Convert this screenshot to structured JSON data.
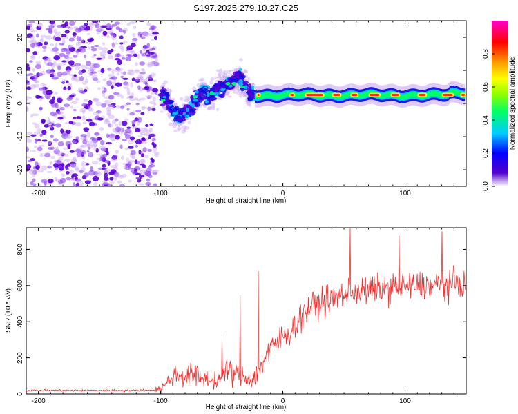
{
  "title": "S197.2025.279.10.27.C25",
  "chart_data": [
    {
      "type": "heatmap",
      "xlabel": "Height of straight line (km)",
      "ylabel": "Frequency (Hz)",
      "xlim": [
        -210,
        150
      ],
      "ylim": [
        -25,
        25
      ],
      "xticks": [
        -200,
        -100,
        0,
        100
      ],
      "yticks": [
        -20,
        -10,
        0,
        10,
        20
      ],
      "colorbar": {
        "label": "Normalized spectral amplitude",
        "ticks": [
          0.0,
          0.2,
          0.4,
          0.6,
          0.8
        ],
        "range": [
          0,
          1
        ],
        "colors": [
          "#ffffff",
          "#5500cc",
          "#0000ff",
          "#00ccff",
          "#00ff00",
          "#ffff00",
          "#ff9900",
          "#ff0000",
          "#ff00cc"
        ]
      },
      "features": {
        "noise_region_x": [
          -210,
          -103
        ],
        "noise_freq_range_hz": [
          -25,
          25
        ],
        "chirp_points": [
          [
            -100,
            3
          ],
          [
            -95,
            1
          ],
          [
            -92,
            -1
          ],
          [
            -88,
            -3
          ],
          [
            -85,
            -4
          ],
          [
            -80,
            -3
          ],
          [
            -75,
            -1
          ],
          [
            -70,
            2
          ],
          [
            -65,
            3
          ],
          [
            -60,
            2
          ],
          [
            -55,
            4
          ],
          [
            -50,
            5
          ],
          [
            -45,
            6
          ],
          [
            -40,
            7
          ],
          [
            -35,
            8
          ],
          [
            -32,
            6
          ],
          [
            -28,
            3
          ],
          [
            -24,
            3
          ]
        ],
        "steady_line_x": [
          -23,
          150
        ],
        "steady_line_freq_hz": 2.5
      }
    },
    {
      "type": "line",
      "xlabel": "Height of straight line (km)",
      "ylabel": "SNR (10 * v/v)",
      "xlim": [
        -210,
        150
      ],
      "ylim": [
        0,
        920
      ],
      "xticks": [
        -200,
        -100,
        0,
        100
      ],
      "yticks": [
        0,
        200,
        400,
        600,
        800
      ],
      "series": [
        {
          "name": "SNR",
          "color": "#ff2a2a",
          "x": [
            -210,
            -195,
            -180,
            -165,
            -150,
            -135,
            -120,
            -105,
            -100,
            -95,
            -90,
            -85,
            -80,
            -75,
            -70,
            -65,
            -60,
            -55,
            -50,
            -45,
            -40,
            -35,
            -30,
            -25,
            -20,
            -15,
            -10,
            -5,
            0,
            5,
            10,
            15,
            20,
            25,
            30,
            35,
            40,
            45,
            50,
            55,
            60,
            65,
            70,
            75,
            80,
            85,
            90,
            95,
            100,
            105,
            110,
            115,
            120,
            125,
            130,
            135,
            140,
            145,
            150
          ],
          "base": [
            20,
            20,
            20,
            20,
            20,
            20,
            20,
            22,
            30,
            60,
            100,
            105,
            95,
            110,
            100,
            85,
            80,
            70,
            90,
            130,
            120,
            100,
            90,
            80,
            120,
            200,
            250,
            280,
            320,
            340,
            380,
            430,
            470,
            490,
            500,
            515,
            525,
            540,
            550,
            560,
            565,
            570,
            575,
            580,
            585,
            585,
            590,
            590,
            595,
            595,
            600,
            600,
            600,
            600,
            605,
            605,
            610,
            610,
            610
          ],
          "spikes": [
            [
              -50,
              330
            ],
            [
              -35,
              550
            ],
            [
              -20,
              680
            ],
            [
              55,
              920
            ],
            [
              95,
              875
            ],
            [
              130,
              900
            ]
          ]
        }
      ]
    }
  ]
}
